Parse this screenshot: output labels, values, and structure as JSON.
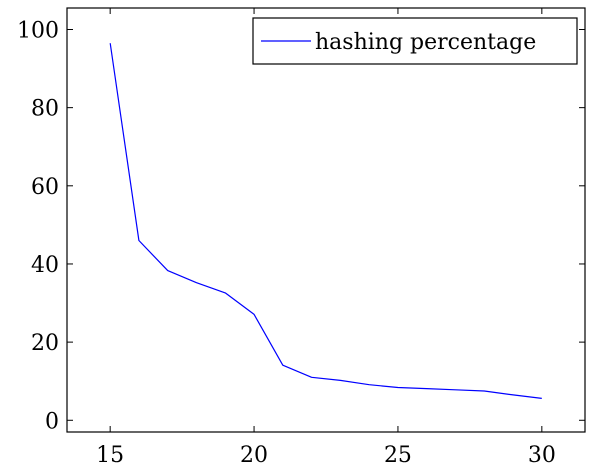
{
  "chart_data": {
    "type": "line",
    "title": "",
    "xlabel": "",
    "ylabel": "",
    "xlim": [
      13.5,
      31.5
    ],
    "ylim": [
      -3,
      105.5
    ],
    "xticks": [
      15,
      20,
      25,
      30
    ],
    "yticks": [
      0,
      20,
      40,
      60,
      80,
      100
    ],
    "grid": false,
    "legend": "top-right",
    "series": [
      {
        "name": "hashing percentage",
        "color": "#0000ff",
        "x": [
          15,
          16,
          17,
          18,
          19,
          20,
          21,
          22,
          23,
          24,
          25,
          26,
          27,
          28,
          29,
          30
        ],
        "y": [
          96.5,
          46,
          38.3,
          35.2,
          32.6,
          27.1,
          14.1,
          11,
          10.2,
          9.1,
          8.4,
          8.1,
          7.8,
          7.5,
          6.5,
          5.6
        ]
      }
    ]
  }
}
